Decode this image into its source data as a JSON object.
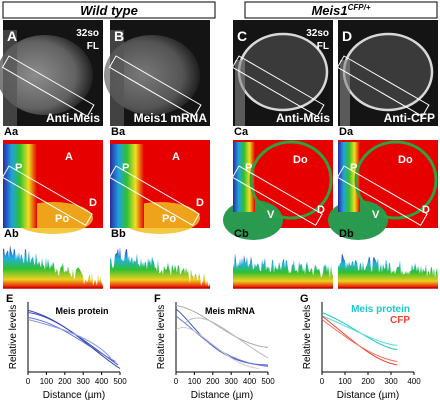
{
  "groups": [
    {
      "label": "Wild type"
    },
    {
      "label": "Meis1",
      "superscript": "CFP/+"
    }
  ],
  "panels": [
    {
      "id": "A",
      "stage": "32so",
      "region": "FL",
      "caption": "Anti-Meis"
    },
    {
      "id": "B",
      "caption": "Meis1 mRNA"
    },
    {
      "id": "C",
      "stage": "32so",
      "region": "FL",
      "caption": "Anti-Meis"
    },
    {
      "id": "D",
      "caption": "Anti-CFP"
    }
  ],
  "heatmaps": [
    {
      "id": "Aa",
      "regions": [
        "A",
        "P",
        "D",
        "Po"
      ]
    },
    {
      "id": "Ba",
      "regions": [
        "A",
        "P",
        "D",
        "Po"
      ]
    },
    {
      "id": "Ca",
      "regions": [
        "Do",
        "P",
        "V",
        "D"
      ]
    },
    {
      "id": "Da",
      "regions": [
        "Do",
        "P",
        "V",
        "D"
      ]
    }
  ],
  "profiles": [
    "Ab",
    "Bb",
    "Cb",
    "Db"
  ],
  "graphs": [
    {
      "id": "E",
      "title": "Meis protein",
      "y_label": "Relative levels",
      "x_label": "Distance (µm)",
      "x_ticks": [
        0,
        100,
        200,
        300,
        400,
        500
      ]
    },
    {
      "id": "F",
      "title": "Meis mRNA",
      "y_label": "Relative levels",
      "x_label": "Distance (µm)",
      "x_ticks": [
        0,
        100,
        200,
        300,
        400,
        500
      ]
    },
    {
      "id": "G",
      "y_label": "Relative levels",
      "x_label": "Distance (µm)",
      "x_ticks": [
        0,
        100,
        200,
        300,
        400
      ],
      "legend": [
        {
          "name": "Meis protein",
          "color": "#1fc8c8"
        },
        {
          "name": "CFP",
          "color": "#ee4433"
        }
      ]
    }
  ]
}
